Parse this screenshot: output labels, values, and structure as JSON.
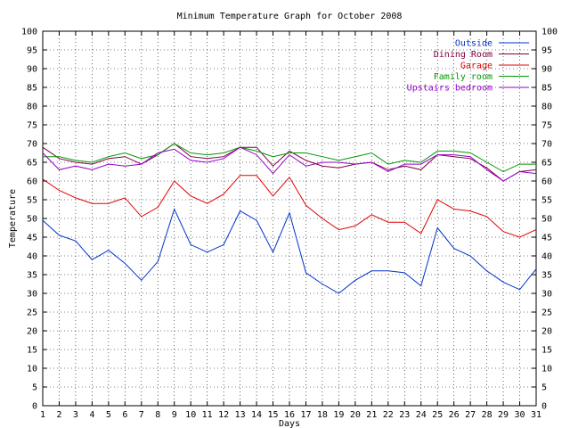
{
  "chart_data": {
    "type": "line",
    "title": "Minimum Temperature Graph for October 2008",
    "xlabel": "Days",
    "ylabel": "Temperature",
    "xlim": [
      1,
      31
    ],
    "ylim": [
      0,
      100
    ],
    "x_ticks": [
      1,
      2,
      3,
      4,
      5,
      6,
      7,
      8,
      9,
      10,
      11,
      12,
      13,
      14,
      15,
      16,
      17,
      18,
      19,
      20,
      21,
      22,
      23,
      24,
      25,
      26,
      27,
      28,
      29,
      30,
      31
    ],
    "y_ticks": [
      0,
      5,
      10,
      15,
      20,
      25,
      30,
      35,
      40,
      45,
      50,
      55,
      60,
      65,
      70,
      75,
      80,
      85,
      90,
      95,
      100
    ],
    "y_axis_mirrored_right": true,
    "grid": true,
    "legend_position": "top-right",
    "x": [
      1,
      2,
      3,
      4,
      5,
      6,
      7,
      8,
      9,
      10,
      11,
      12,
      13,
      14,
      15,
      16,
      17,
      18,
      19,
      20,
      21,
      22,
      23,
      24,
      25,
      26,
      27,
      28,
      29,
      30,
      31
    ],
    "series": [
      {
        "name": "Outside",
        "color": "#0033cc",
        "values": [
          49.5,
          45.5,
          44,
          39,
          41.5,
          38,
          33.5,
          38.5,
          52.5,
          43,
          41,
          43,
          52,
          49.5,
          41,
          51.5,
          35.5,
          32.5,
          30,
          33.5,
          36,
          36,
          35.5,
          32,
          47.5,
          42,
          40,
          36,
          33,
          31,
          36.5
        ]
      },
      {
        "name": "Dining Room",
        "color": "#800040",
        "values": [
          69,
          66,
          65,
          64.5,
          66,
          66.5,
          64.5,
          67,
          70,
          66.5,
          66,
          66.5,
          69,
          69,
          64,
          68,
          65.5,
          64,
          63.5,
          64.5,
          65,
          63,
          64,
          63,
          67,
          66.5,
          66,
          63.5,
          60,
          62.5,
          63
        ]
      },
      {
        "name": "Garage",
        "color": "#e00000",
        "values": [
          60.5,
          57.5,
          55.5,
          54,
          54,
          55.5,
          50.5,
          53,
          60,
          56,
          54,
          56.5,
          61.5,
          61.5,
          56,
          61,
          53.5,
          50,
          47,
          48,
          51,
          49,
          49,
          46,
          55,
          52.5,
          52,
          50.5,
          46.5,
          45,
          47
        ]
      },
      {
        "name": "Family room",
        "color": "#009900",
        "values": [
          66.5,
          66.5,
          65.5,
          65,
          66.5,
          67.5,
          66,
          67,
          70,
          67.5,
          67,
          67.5,
          69,
          68,
          66.5,
          67.5,
          67.5,
          66.5,
          65.5,
          66.5,
          67.5,
          64.5,
          65.5,
          65,
          68,
          68,
          67.5,
          65,
          62.5,
          64.5,
          64.5
        ]
      },
      {
        "name": "Upstairs bedroom",
        "color": "#9900cc",
        "values": [
          67.5,
          63,
          64,
          63,
          64.5,
          64,
          64.5,
          67.5,
          68.5,
          65.5,
          65,
          66,
          69,
          67,
          62,
          67,
          64,
          65,
          65,
          64.5,
          65,
          62.5,
          64.5,
          64.5,
          67,
          67,
          66.5,
          63,
          60,
          62.5,
          62
        ]
      }
    ]
  }
}
